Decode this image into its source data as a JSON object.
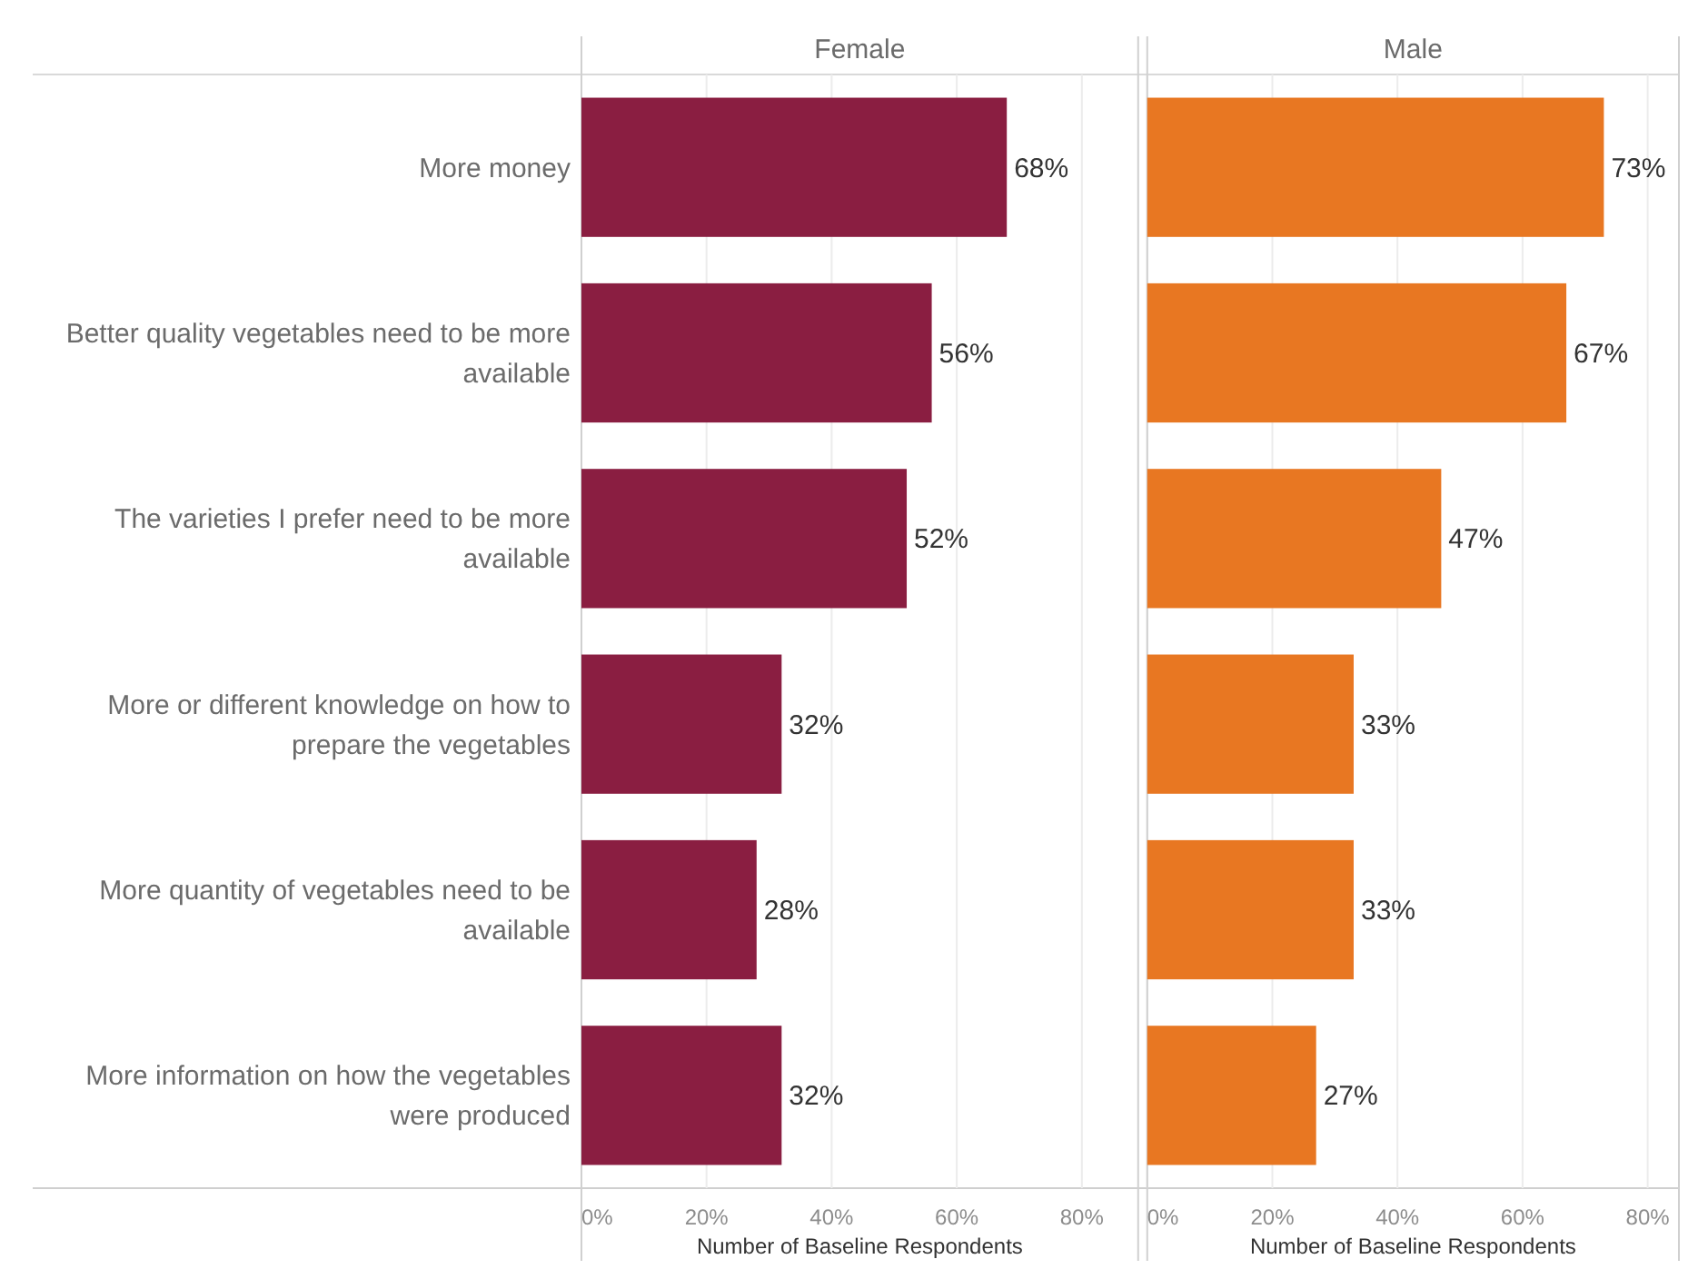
{
  "chart_data": [
    {
      "type": "bar",
      "orientation": "horizontal",
      "title": "Female",
      "xlabel": "Number of Baseline Respondents",
      "categories": [
        "More money",
        "Better quality vegetables need to be more available",
        "The varieties I prefer need to be more available",
        "More or different knowledge on how to prepare the vegetables",
        "More quantity of vegetables need to be available",
        "More information on how the vegetables were produced"
      ],
      "values": [
        68,
        56,
        52,
        32,
        28,
        32
      ],
      "value_labels": [
        "68%",
        "56%",
        "52%",
        "32%",
        "28%",
        "32%"
      ],
      "color": "#8a1e41",
      "xlim": [
        0,
        89
      ],
      "xticks": [
        {
          "value": 0,
          "label": "0%"
        },
        {
          "value": 20,
          "label": "20%"
        },
        {
          "value": 40,
          "label": "40%"
        },
        {
          "value": 60,
          "label": "60%"
        },
        {
          "value": 80,
          "label": "80%"
        }
      ],
      "grid": "x"
    },
    {
      "type": "bar",
      "orientation": "horizontal",
      "title": "Male",
      "xlabel": "Number of Baseline Respondents",
      "categories": [
        null,
        null,
        null,
        null,
        null,
        null
      ],
      "values": [
        73,
        67,
        47,
        33,
        33,
        27
      ],
      "value_labels": [
        "73%",
        "67%",
        "47%",
        "33%",
        "33%",
        "27%"
      ],
      "color": "#e87722",
      "xlim": [
        0,
        85
      ],
      "xticks": [
        {
          "value": 0,
          "label": "0%"
        },
        {
          "value": 20,
          "label": "20%"
        },
        {
          "value": 40,
          "label": "40%"
        },
        {
          "value": 60,
          "label": "60%"
        },
        {
          "value": 80,
          "label": "80%"
        }
      ],
      "grid": "x",
      "tick_labels": "x"
    }
  ]
}
